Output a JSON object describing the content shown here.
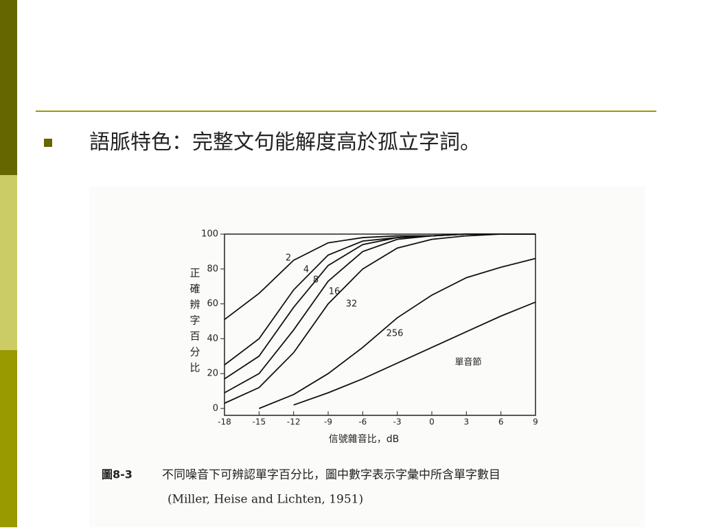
{
  "slide": {
    "bullet": "語脈特色：完整文句能解度高於孤立字詞。"
  },
  "chart_data": {
    "type": "line",
    "x_label": "信號雜音比，dB",
    "y_label": "正確辨字百分比",
    "figure_label": "圖8-3",
    "caption": "不同噪音下可辨認單字百分比，圖中數字表示字彙中所含單字數目",
    "source": "(Miller, Heise and Lichten, 1951)",
    "x": [
      -18,
      -15,
      -12,
      -9,
      -6,
      -3,
      0,
      3,
      6,
      9
    ],
    "series": [
      {
        "name": "2",
        "color": "#111111",
        "values": [
          51,
          66,
          85,
          95,
          98,
          99,
          99,
          100,
          100,
          100
        ]
      },
      {
        "name": "4",
        "color": "#111111",
        "values": [
          25,
          40,
          68,
          88,
          96,
          98,
          99,
          100,
          100,
          100
        ]
      },
      {
        "name": "8",
        "color": "#111111",
        "values": [
          17,
          30,
          58,
          82,
          94,
          98,
          99,
          100,
          100,
          100
        ]
      },
      {
        "name": "16",
        "color": "#111111",
        "values": [
          9,
          20,
          45,
          73,
          90,
          97,
          99,
          100,
          100,
          100
        ]
      },
      {
        "name": "32",
        "color": "#111111",
        "values": [
          3,
          12,
          32,
          60,
          80,
          92,
          97,
          99,
          100,
          100
        ]
      },
      {
        "name": "256",
        "color": "#111111",
        "values": [
          null,
          0,
          8,
          20,
          35,
          52,
          65,
          75,
          81,
          86
        ]
      },
      {
        "name": "單音節",
        "color": "#111111",
        "values": [
          null,
          null,
          2,
          9,
          17,
          26,
          35,
          44,
          53,
          61
        ]
      }
    ],
    "xlim": [
      -18,
      9
    ],
    "xticks": [
      -18,
      -15,
      -12,
      -9,
      -6,
      -3,
      0,
      3,
      6,
      9
    ],
    "ylim": [
      0,
      100
    ],
    "yticks": [
      0,
      20,
      40,
      60,
      80,
      100
    ]
  }
}
